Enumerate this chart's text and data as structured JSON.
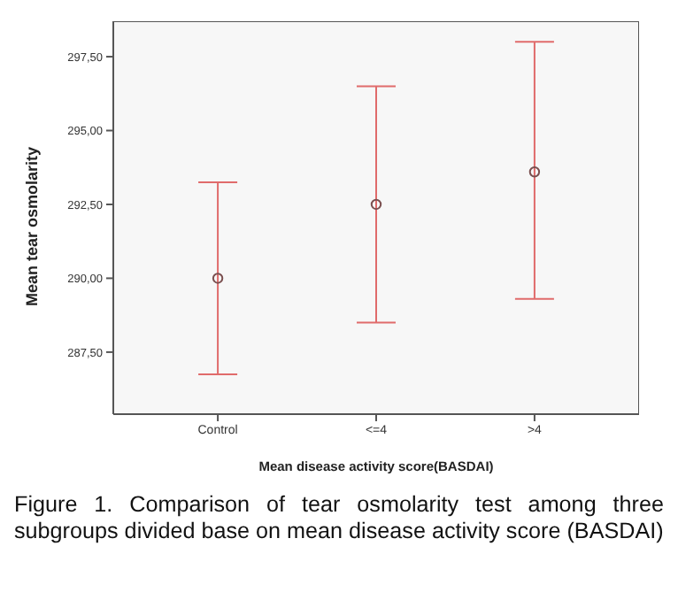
{
  "chart_data": {
    "type": "scatter",
    "xlabel": "Mean disease activity score(BASDAI)",
    "ylabel": "Mean tear osmolarity",
    "categories": [
      "Control",
      "<=4",
      ">4"
    ],
    "series": [
      {
        "color": "#7a4f4f",
        "values": [
          290.0,
          292.5,
          293.6
        ],
        "errors": [
          [
            286.75,
            293.25
          ],
          [
            288.5,
            296.5
          ],
          [
            289.3,
            298.0
          ]
        ]
      }
    ],
    "ylim": [
      285.4,
      298.7
    ],
    "yticks": [
      {
        "value": 287.5,
        "label": "287,50"
      },
      {
        "value": 290,
        "label": "290,00"
      },
      {
        "value": 292.5,
        "label": "292,50"
      },
      {
        "value": 295,
        "label": "295,00"
      },
      {
        "value": 297.5,
        "label": "297,50"
      }
    ],
    "marker": "circle",
    "grid": false,
    "annotations": [
      "Figure 1. Comparison of tear osmolarity test among three subgroups divided base on mean disease activity score (BASDAI)"
    ]
  }
}
